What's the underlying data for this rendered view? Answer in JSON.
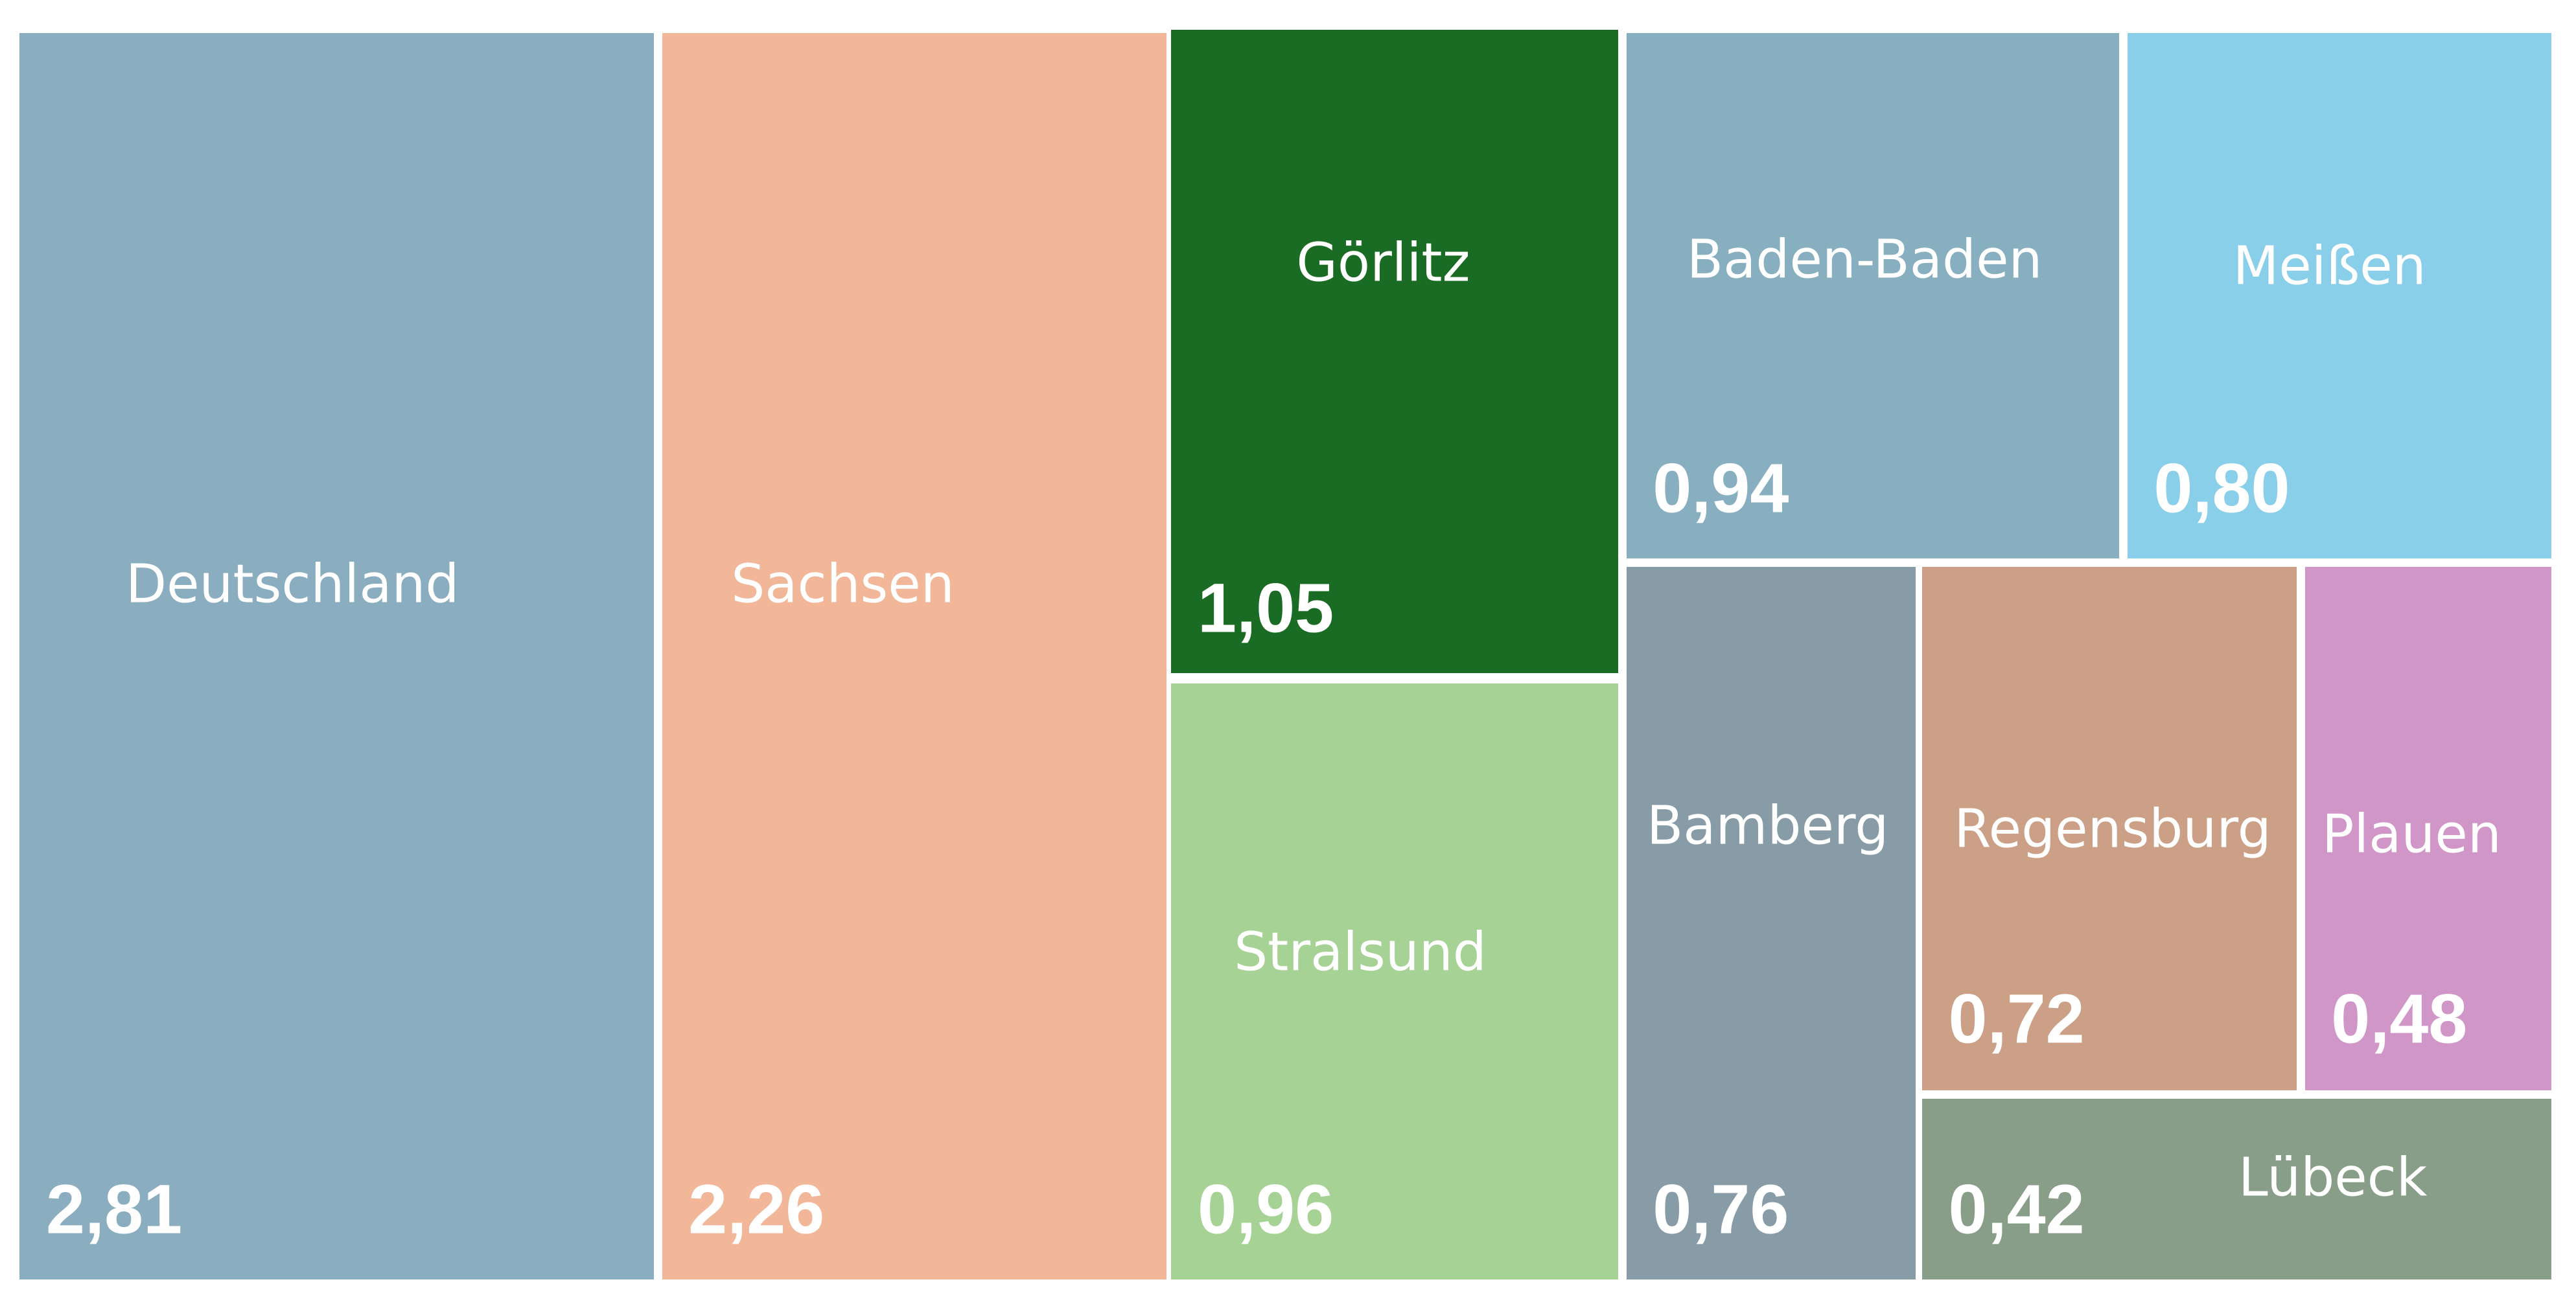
{
  "chart_data": {
    "type": "treemap",
    "items": [
      {
        "label": "Deutschland",
        "value": 2.81,
        "value_text": "2,81",
        "color": "#8aaebf"
      },
      {
        "label": "Sachsen",
        "value": 2.26,
        "value_text": "2,26",
        "color": "#f2b799"
      },
      {
        "label": "Görlitz",
        "value": 1.05,
        "value_text": "1,05",
        "color": "#1a6b23"
      },
      {
        "label": "Stralsund",
        "value": 0.96,
        "value_text": "0,96",
        "color": "#a6d395"
      },
      {
        "label": "Baden-Baden",
        "value": 0.94,
        "value_text": "0,94",
        "color": "#87afbf"
      },
      {
        "label": "Meißen",
        "value": 0.8,
        "value_text": "0,80",
        "color": "#89cfea"
      },
      {
        "label": "Bamberg",
        "value": 0.76,
        "value_text": "0,76",
        "color": "#879ca6"
      },
      {
        "label": "Regensburg",
        "value": 0.72,
        "value_text": "0,72",
        "color": "#cba086"
      },
      {
        "label": "Plauen",
        "value": 0.48,
        "value_text": "0,48",
        "color": "#d096c8"
      },
      {
        "label": "Lübeck",
        "value": 0.42,
        "value_text": "0,42",
        "color": "#899e88"
      }
    ]
  }
}
